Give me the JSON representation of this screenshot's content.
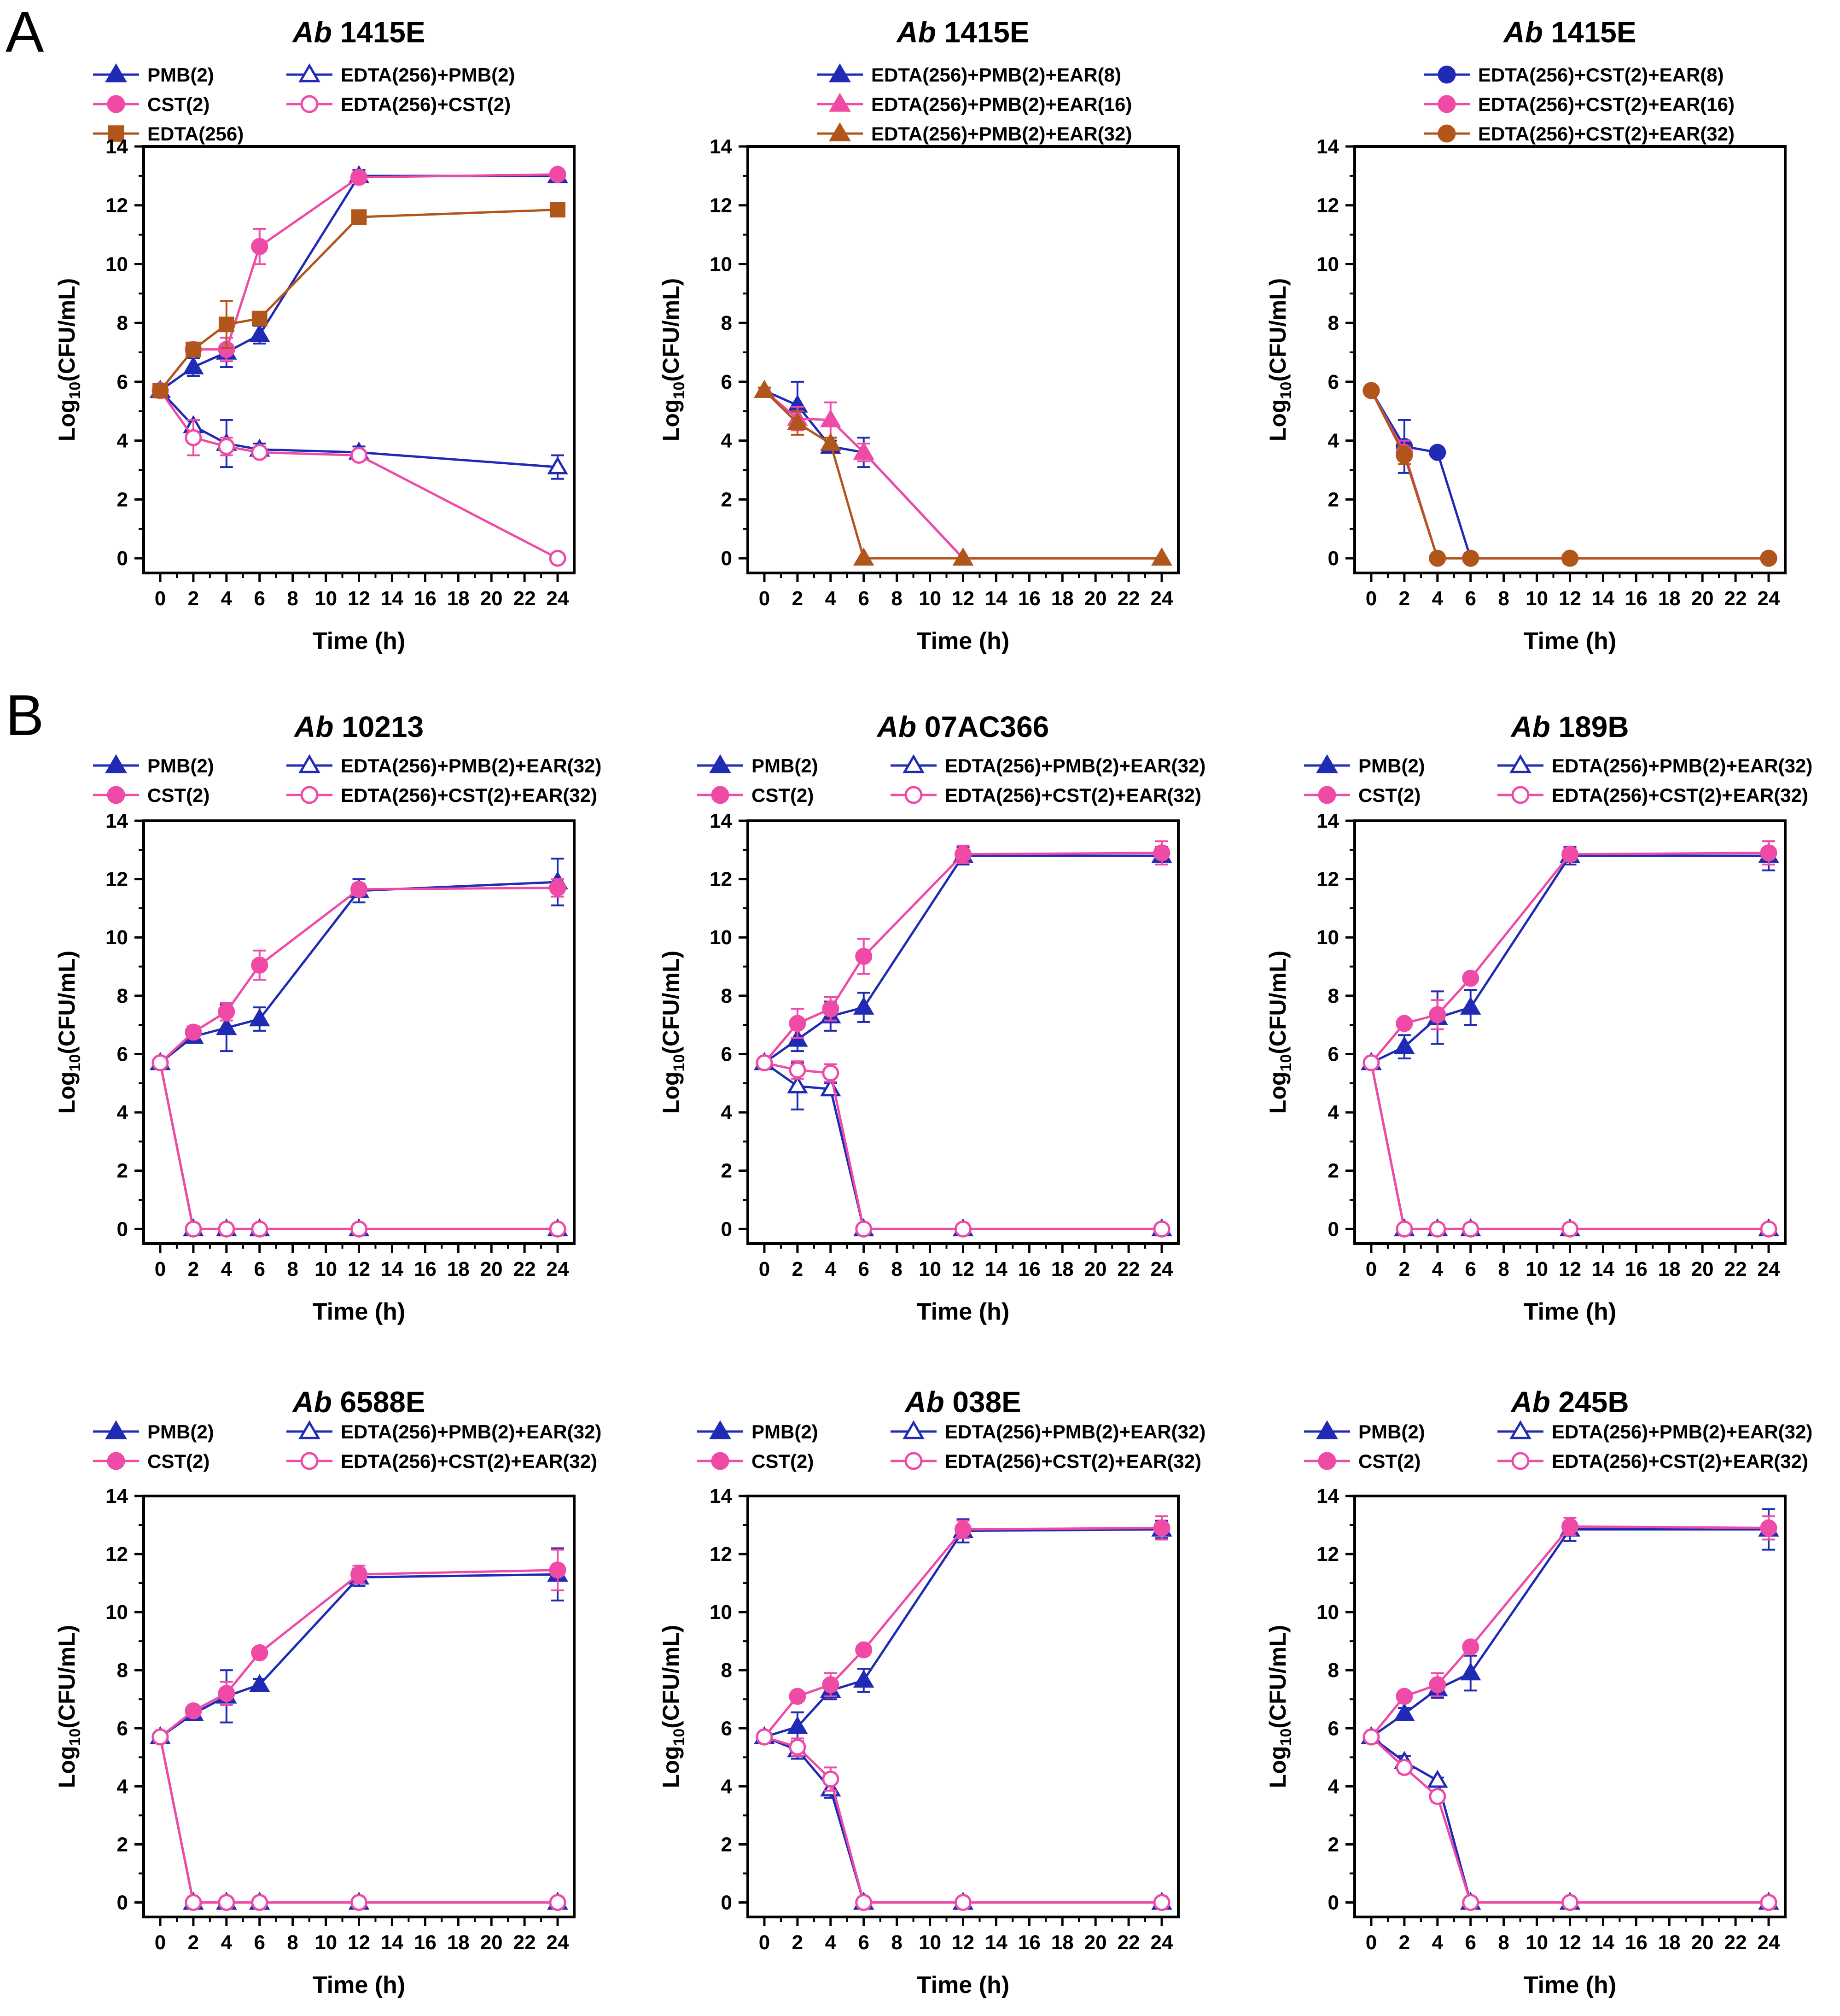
{
  "figure": {
    "panel_labels": [
      "A",
      "B"
    ]
  },
  "styles": {
    "PMB": {
      "color": "#1f2bb5",
      "marker": "triangle",
      "filled": true
    },
    "CST": {
      "color": "#ee4aa6",
      "marker": "circle",
      "filled": true
    },
    "EDTA": {
      "color": "#b1561b",
      "marker": "square",
      "filled": true
    },
    "EDTA_PMB": {
      "color": "#1f2bb5",
      "marker": "triangle",
      "filled": false
    },
    "EDTA_CST": {
      "color": "#ee4aa6",
      "marker": "circle",
      "filled": false
    },
    "PMB_EAR8": {
      "color": "#1f2bb5",
      "marker": "triangle",
      "filled": true
    },
    "PMB_EAR16": {
      "color": "#ee4aa6",
      "marker": "triangle",
      "filled": true
    },
    "PMB_EAR32": {
      "color": "#b1561b",
      "marker": "triangle",
      "filled": true
    },
    "CST_EAR8": {
      "color": "#1f2bb5",
      "marker": "circle",
      "filled": true
    },
    "CST_EAR16": {
      "color": "#ee4aa6",
      "marker": "circle",
      "filled": true
    },
    "CST_EAR32": {
      "color": "#b1561b",
      "marker": "circle",
      "filled": true
    }
  },
  "chart_data": [
    {
      "type": "line",
      "title_italic": "Ab",
      "title_rest": "1415E",
      "xlabel": "Time (h)",
      "ylabel": "Log10(CFU/mL)",
      "xlim": [
        -1,
        25
      ],
      "ylim": [
        -0.5,
        14
      ],
      "xticks": [
        0,
        2,
        4,
        6,
        8,
        10,
        12,
        14,
        16,
        18,
        20,
        22,
        24
      ],
      "yticks": [
        0,
        2,
        4,
        6,
        8,
        10,
        12,
        14
      ],
      "x": [
        0,
        2,
        4,
        6,
        12,
        24
      ],
      "legend_layout": "grid",
      "series": [
        {
          "name": "PMB(2)",
          "style": "PMB",
          "values": [
            5.7,
            6.5,
            7.0,
            7.6,
            13.0,
            13.0
          ],
          "err": [
            0.1,
            0.3,
            0.5,
            0.3,
            0.2,
            0.2
          ]
        },
        {
          "name": "EDTA(256)+PMB(2)",
          "style": "EDTA_PMB",
          "values": [
            5.7,
            4.5,
            3.9,
            3.7,
            3.6,
            3.1
          ],
          "err": [
            0.1,
            0.2,
            0.8,
            0.2,
            0.2,
            0.4
          ]
        },
        {
          "name": "CST(2)",
          "style": "CST",
          "values": [
            5.7,
            7.1,
            7.1,
            10.6,
            12.95,
            13.05
          ],
          "err": [
            0.1,
            0.2,
            0.4,
            0.6,
            0.15,
            0.15
          ]
        },
        {
          "name": "EDTA(256)+CST(2)",
          "style": "EDTA_CST",
          "values": [
            5.7,
            4.1,
            3.8,
            3.6,
            3.5,
            0.0
          ],
          "err": [
            0.1,
            0.6,
            0.3,
            0.15,
            0.1,
            0.0
          ]
        },
        {
          "name": "EDTA(256)",
          "style": "EDTA",
          "values": [
            5.7,
            7.1,
            7.95,
            8.15,
            11.6,
            11.85
          ],
          "err": [
            0.1,
            0.15,
            0.8,
            0.2,
            0.1,
            0.1
          ]
        }
      ]
    },
    {
      "type": "line",
      "title_italic": "Ab",
      "title_rest": "1415E",
      "xlabel": "Time (h)",
      "ylabel": "Log10(CFU/mL)",
      "xlim": [
        -1,
        25
      ],
      "ylim": [
        -0.5,
        14
      ],
      "xticks": [
        0,
        2,
        4,
        6,
        8,
        10,
        12,
        14,
        16,
        18,
        20,
        22,
        24
      ],
      "yticks": [
        0,
        2,
        4,
        6,
        8,
        10,
        12,
        14
      ],
      "x": [
        0,
        2,
        4,
        6,
        12,
        24
      ],
      "legend_layout": "column",
      "series": [
        {
          "name": "EDTA(256)+PMB(2)+EAR(8)",
          "style": "PMB_EAR8",
          "values": [
            5.7,
            5.2,
            3.8,
            3.6,
            0,
            0
          ],
          "err": [
            0.1,
            0.8,
            0.2,
            0.5,
            0,
            0
          ]
        },
        {
          "name": "EDTA(256)+PMB(2)+EAR(16)",
          "style": "PMB_EAR16",
          "values": [
            5.7,
            4.75,
            4.7,
            3.6,
            0,
            0
          ],
          "err": [
            0.1,
            0.4,
            0.6,
            0.3,
            0,
            0
          ]
        },
        {
          "name": "EDTA(256)+PMB(2)+EAR(32)",
          "style": "PMB_EAR32",
          "values": [
            5.7,
            4.6,
            3.9,
            0,
            0,
            0
          ],
          "err": [
            0.1,
            0.4,
            0.2,
            0,
            0,
            0
          ]
        }
      ]
    },
    {
      "type": "line",
      "title_italic": "Ab",
      "title_rest": "1415E",
      "xlabel": "Time (h)",
      "ylabel": "Log10(CFU/mL)",
      "xlim": [
        -1,
        25
      ],
      "ylim": [
        -0.5,
        14
      ],
      "xticks": [
        0,
        2,
        4,
        6,
        8,
        10,
        12,
        14,
        16,
        18,
        20,
        22,
        24
      ],
      "yticks": [
        0,
        2,
        4,
        6,
        8,
        10,
        12,
        14
      ],
      "x": [
        0,
        2,
        4,
        6,
        12,
        24
      ],
      "legend_layout": "column",
      "series": [
        {
          "name": "EDTA(256)+CST(2)+EAR(8)",
          "style": "CST_EAR8",
          "values": [
            5.7,
            3.8,
            3.6,
            0,
            0,
            0
          ],
          "err": [
            0.1,
            0.9,
            0.1,
            0,
            0,
            0
          ]
        },
        {
          "name": "EDTA(256)+CST(2)+EAR(16)",
          "style": "CST_EAR16",
          "values": [
            5.7,
            3.6,
            0,
            0,
            0,
            0
          ],
          "err": [
            0.1,
            0.4,
            0,
            0,
            0,
            0
          ]
        },
        {
          "name": "EDTA(256)+CST(2)+EAR(32)",
          "style": "CST_EAR32",
          "values": [
            5.7,
            3.5,
            0,
            0,
            0,
            0
          ],
          "err": [
            0.1,
            0.3,
            0,
            0,
            0,
            0
          ]
        }
      ]
    },
    {
      "type": "line",
      "title_italic": "Ab",
      "title_rest": "10213",
      "xlabel": "Time (h)",
      "ylabel": "Log10(CFU/mL)",
      "xlim": [
        -1,
        25
      ],
      "ylim": [
        -0.5,
        14
      ],
      "xticks": [
        0,
        2,
        4,
        6,
        8,
        10,
        12,
        14,
        16,
        18,
        20,
        22,
        24
      ],
      "yticks": [
        0,
        2,
        4,
        6,
        8,
        10,
        12,
        14
      ],
      "x": [
        0,
        2,
        4,
        6,
        12,
        24
      ],
      "legend_layout": "grid",
      "series": [
        {
          "name": "PMB(2)",
          "style": "PMB",
          "values": [
            5.7,
            6.6,
            6.9,
            7.2,
            11.6,
            11.9
          ],
          "err": [
            0.1,
            0.2,
            0.8,
            0.4,
            0.4,
            0.8
          ]
        },
        {
          "name": "EDTA(256)+PMB(2)+EAR(32)",
          "style": "EDTA_PMB",
          "values": [
            5.7,
            0,
            0,
            0,
            0,
            0
          ],
          "err": [
            0.1,
            0,
            0,
            0,
            0,
            0
          ]
        },
        {
          "name": "CST(2)",
          "style": "CST",
          "values": [
            5.7,
            6.75,
            7.45,
            9.05,
            11.65,
            11.7
          ],
          "err": [
            0.1,
            0.2,
            0.3,
            0.5,
            0.2,
            0.3
          ]
        },
        {
          "name": "EDTA(256)+CST(2)+EAR(32)",
          "style": "EDTA_CST",
          "values": [
            5.7,
            0,
            0,
            0,
            0,
            0
          ],
          "err": [
            0.1,
            0,
            0,
            0,
            0,
            0
          ]
        }
      ]
    },
    {
      "type": "line",
      "title_italic": "Ab",
      "title_rest": "07AC366",
      "xlabel": "Time (h)",
      "ylabel": "Log10(CFU/mL)",
      "xlim": [
        -1,
        25
      ],
      "ylim": [
        -0.5,
        14
      ],
      "xticks": [
        0,
        2,
        4,
        6,
        8,
        10,
        12,
        14,
        16,
        18,
        20,
        22,
        24
      ],
      "yticks": [
        0,
        2,
        4,
        6,
        8,
        10,
        12,
        14
      ],
      "x": [
        0,
        2,
        4,
        6,
        12,
        24
      ],
      "legend_layout": "grid",
      "series": [
        {
          "name": "PMB(2)",
          "style": "PMB",
          "values": [
            5.7,
            6.5,
            7.3,
            7.6,
            12.8,
            12.8
          ],
          "err": [
            0.1,
            0.4,
            0.5,
            0.5,
            0.3,
            0.3
          ]
        },
        {
          "name": "EDTA(256)+PMB(2)+EAR(32)",
          "style": "EDTA_PMB",
          "values": [
            5.7,
            4.9,
            4.8,
            0,
            0,
            0
          ],
          "err": [
            0.1,
            0.8,
            0.2,
            0,
            0,
            0
          ]
        },
        {
          "name": "CST(2)",
          "style": "CST",
          "values": [
            5.7,
            7.05,
            7.55,
            9.35,
            12.85,
            12.9
          ],
          "err": [
            0.1,
            0.5,
            0.4,
            0.6,
            0.3,
            0.4
          ]
        },
        {
          "name": "EDTA(256)+CST(2)+EAR(32)",
          "style": "EDTA_CST",
          "values": [
            5.7,
            5.45,
            5.35,
            0,
            0,
            0
          ],
          "err": [
            0.1,
            0.3,
            0.3,
            0,
            0,
            0
          ]
        }
      ]
    },
    {
      "type": "line",
      "title_italic": "Ab",
      "title_rest": "189B",
      "xlabel": "Time (h)",
      "ylabel": "Log10(CFU/mL)",
      "xlim": [
        -1,
        25
      ],
      "ylim": [
        -0.5,
        14
      ],
      "xticks": [
        0,
        2,
        4,
        6,
        8,
        10,
        12,
        14,
        16,
        18,
        20,
        22,
        24
      ],
      "yticks": [
        0,
        2,
        4,
        6,
        8,
        10,
        12,
        14
      ],
      "x": [
        0,
        2,
        4,
        6,
        12,
        24
      ],
      "legend_layout": "grid",
      "series": [
        {
          "name": "PMB(2)",
          "style": "PMB",
          "values": [
            5.7,
            6.25,
            7.25,
            7.6,
            12.8,
            12.8
          ],
          "err": [
            0.1,
            0.4,
            0.9,
            0.6,
            0.3,
            0.5
          ]
        },
        {
          "name": "EDTA(256)+PMB(2)+EAR(32)",
          "style": "EDTA_PMB",
          "values": [
            5.7,
            0,
            0,
            0,
            0,
            0
          ],
          "err": [
            0.1,
            0,
            0,
            0,
            0,
            0
          ]
        },
        {
          "name": "CST(2)",
          "style": "CST",
          "values": [
            5.7,
            7.05,
            7.35,
            8.6,
            12.85,
            12.9
          ],
          "err": [
            0.1,
            0.1,
            0.5,
            0.1,
            0.2,
            0.4
          ]
        },
        {
          "name": "EDTA(256)+CST(2)+EAR(32)",
          "style": "EDTA_CST",
          "values": [
            5.7,
            0,
            0,
            0,
            0,
            0
          ],
          "err": [
            0.1,
            0,
            0,
            0,
            0,
            0
          ]
        }
      ]
    },
    {
      "type": "line",
      "title_italic": "Ab",
      "title_rest": "6588E",
      "xlabel": "Time (h)",
      "ylabel": "Log10(CFU/mL)",
      "xlim": [
        -1,
        25
      ],
      "ylim": [
        -0.5,
        14
      ],
      "xticks": [
        0,
        2,
        4,
        6,
        8,
        10,
        12,
        14,
        16,
        18,
        20,
        22,
        24
      ],
      "yticks": [
        0,
        2,
        4,
        6,
        8,
        10,
        12,
        14
      ],
      "x": [
        0,
        2,
        4,
        6,
        12,
        24
      ],
      "legend_layout": "grid",
      "series": [
        {
          "name": "PMB(2)",
          "style": "PMB",
          "values": [
            5.7,
            6.5,
            7.1,
            7.5,
            11.2,
            11.3
          ],
          "err": [
            0.1,
            0.2,
            0.9,
            0.2,
            0.3,
            0.9
          ]
        },
        {
          "name": "EDTA(256)+PMB(2)+EAR(32)",
          "style": "EDTA_PMB",
          "values": [
            5.7,
            0,
            0,
            0,
            0,
            0
          ],
          "err": [
            0.1,
            0,
            0,
            0,
            0,
            0
          ]
        },
        {
          "name": "CST(2)",
          "style": "CST",
          "values": [
            5.7,
            6.6,
            7.2,
            8.6,
            11.3,
            11.45
          ],
          "err": [
            0.1,
            0.1,
            0.4,
            0.1,
            0.3,
            0.7
          ]
        },
        {
          "name": "EDTA(256)+CST(2)+EAR(32)",
          "style": "EDTA_CST",
          "values": [
            5.7,
            0,
            0,
            0,
            0,
            0
          ],
          "err": [
            0.1,
            0,
            0,
            0,
            0,
            0
          ]
        }
      ]
    },
    {
      "type": "line",
      "title_italic": "Ab",
      "title_rest": "038E",
      "xlabel": "Time (h)",
      "ylabel": "Log10(CFU/mL)",
      "xlim": [
        -1,
        25
      ],
      "ylim": [
        -0.5,
        14
      ],
      "xticks": [
        0,
        2,
        4,
        6,
        8,
        10,
        12,
        14,
        16,
        18,
        20,
        22,
        24
      ],
      "yticks": [
        0,
        2,
        4,
        6,
        8,
        10,
        12,
        14
      ],
      "x": [
        0,
        2,
        4,
        6,
        12,
        24
      ],
      "legend_layout": "grid",
      "series": [
        {
          "name": "PMB(2)",
          "style": "PMB",
          "values": [
            5.7,
            6.05,
            7.3,
            7.65,
            12.8,
            12.85
          ],
          "err": [
            0.1,
            0.5,
            0.3,
            0.4,
            0.4,
            0.3
          ]
        },
        {
          "name": "EDTA(256)+PMB(2)+EAR(32)",
          "style": "EDTA_PMB",
          "values": [
            5.7,
            5.25,
            3.9,
            0,
            0,
            0
          ],
          "err": [
            0.1,
            0.3,
            0.3,
            0,
            0,
            0
          ]
        },
        {
          "name": "CST(2)",
          "style": "CST",
          "values": [
            5.7,
            7.1,
            7.5,
            8.7,
            12.85,
            12.9
          ],
          "err": [
            0.1,
            0.1,
            0.4,
            0.1,
            0.3,
            0.4
          ]
        },
        {
          "name": "EDTA(256)+CST(2)+EAR(32)",
          "style": "EDTA_CST",
          "values": [
            5.7,
            5.35,
            4.25,
            0,
            0,
            0
          ],
          "err": [
            0.1,
            0.3,
            0.4,
            0,
            0,
            0
          ]
        }
      ]
    },
    {
      "type": "line",
      "title_italic": "Ab",
      "title_rest": "245B",
      "xlabel": "Time (h)",
      "ylabel": "Log10(CFU/mL)",
      "xlim": [
        -1,
        25
      ],
      "ylim": [
        -0.5,
        14
      ],
      "xticks": [
        0,
        2,
        4,
        6,
        8,
        10,
        12,
        14,
        16,
        18,
        20,
        22,
        24
      ],
      "yticks": [
        0,
        2,
        4,
        6,
        8,
        10,
        12,
        14
      ],
      "x": [
        0,
        2,
        4,
        6,
        12,
        24
      ],
      "legend_layout": "grid",
      "series": [
        {
          "name": "PMB(2)",
          "style": "PMB",
          "values": [
            5.7,
            6.5,
            7.35,
            7.9,
            12.85,
            12.85
          ],
          "err": [
            0.1,
            0.2,
            0.3,
            0.6,
            0.4,
            0.7
          ]
        },
        {
          "name": "EDTA(256)+PMB(2)+EAR(32)",
          "style": "EDTA_PMB",
          "values": [
            5.7,
            4.85,
            4.2,
            0,
            0,
            0
          ],
          "err": [
            0.1,
            0.2,
            0.1,
            0,
            0,
            0
          ]
        },
        {
          "name": "CST(2)",
          "style": "CST",
          "values": [
            5.7,
            7.1,
            7.5,
            8.8,
            12.95,
            12.9
          ],
          "err": [
            0.1,
            0.1,
            0.4,
            0.1,
            0.3,
            0.4
          ]
        },
        {
          "name": "EDTA(256)+CST(2)+EAR(32)",
          "style": "EDTA_CST",
          "values": [
            5.7,
            4.65,
            3.65,
            0,
            0,
            0
          ],
          "err": [
            0.1,
            0.2,
            0.2,
            0,
            0,
            0
          ]
        }
      ]
    }
  ]
}
